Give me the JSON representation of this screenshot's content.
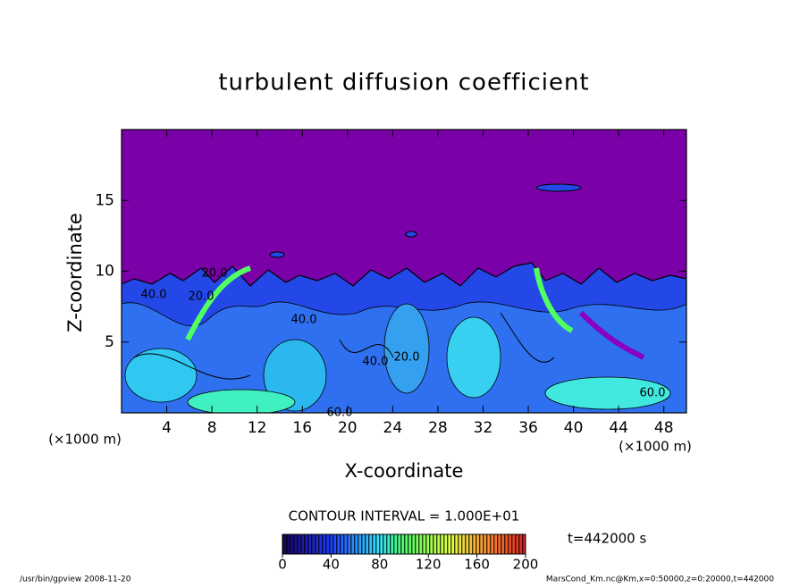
{
  "chart_data": {
    "type": "contour",
    "title": "turbulent diffusion coefficient",
    "x_label": "X-coordinate",
    "y_label": "Z-coordinate",
    "x_unit": "(×1000 m)",
    "y_unit": "(×1000 m)",
    "xlim": [
      0,
      50
    ],
    "xticks": [
      4,
      8,
      12,
      16,
      20,
      24,
      28,
      32,
      36,
      40,
      44,
      48
    ],
    "ylim": [
      0,
      20
    ],
    "yticks": [
      5,
      10,
      15
    ],
    "contour_labels": [
      "20.0",
      "20.0",
      "40.0",
      "40.0",
      "40.0",
      "20.0",
      "60.0",
      "60.0"
    ],
    "contour_interval": "CONTOUR INTERVAL = 1.000E+01",
    "colorbar": {
      "lim": [
        0,
        200
      ],
      "ticks": [
        0,
        40,
        80,
        120,
        160,
        200
      ]
    },
    "time_label": "t=442000 s",
    "footer_left": "/usr/bin/gpview  2008-11-20",
    "footer_right": "MarsCond_Km.nc@Km,x=0:50000,z=0:20000,t=442000"
  }
}
